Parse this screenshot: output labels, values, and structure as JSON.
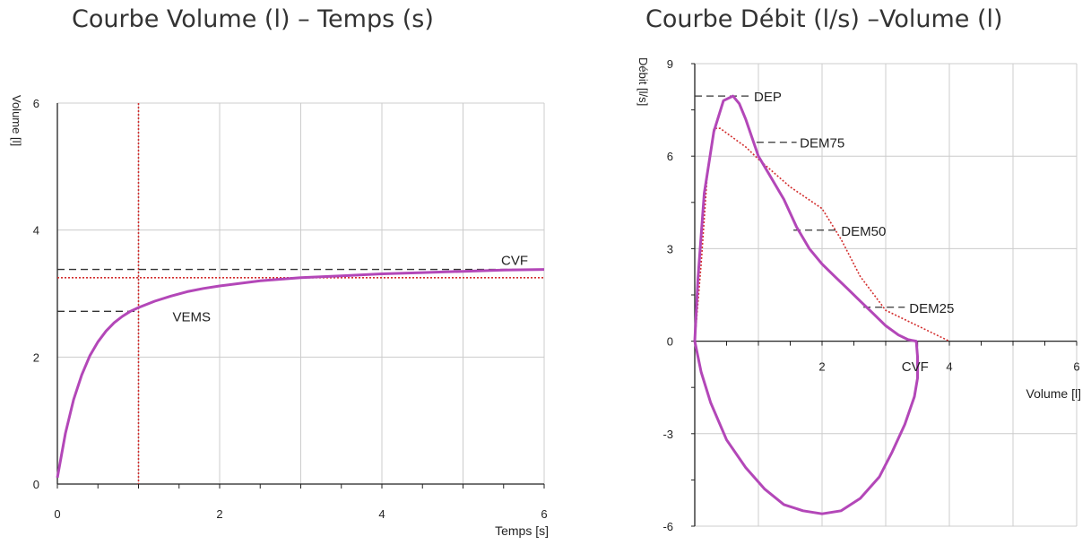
{
  "chart_data": [
    {
      "type": "line",
      "title": "Courbe Volume (l) – Temps (s)",
      "xlabel": "Temps [s]",
      "ylabel": "Volume [l]",
      "xlim": [
        0,
        6
      ],
      "ylim": [
        0,
        6
      ],
      "x_ticks": [
        0,
        2,
        4,
        6
      ],
      "y_ticks": [
        0,
        2,
        4,
        6
      ],
      "grid": true,
      "series": [
        {
          "x": [
            0,
            0.1,
            0.2,
            0.3,
            0.4,
            0.5,
            0.6,
            0.7,
            0.8,
            0.9,
            1.0,
            1.2,
            1.4,
            1.6,
            1.8,
            2.0,
            2.5,
            3.0,
            3.5,
            4.0,
            4.5,
            5.0,
            5.5,
            6.0
          ],
          "y": [
            0.1,
            0.8,
            1.33,
            1.72,
            2.02,
            2.24,
            2.41,
            2.54,
            2.64,
            2.72,
            2.78,
            2.88,
            2.96,
            3.03,
            3.08,
            3.12,
            3.2,
            3.25,
            3.28,
            3.31,
            3.33,
            3.35,
            3.37,
            3.38
          ]
        }
      ],
      "reference_lines": [
        {
          "axis": "x",
          "value": 1.0
        },
        {
          "axis": "y",
          "value": 3.25
        }
      ],
      "annotations": [
        {
          "label": "VEMS",
          "x": 1.0,
          "y": 2.72
        },
        {
          "label": "CVF",
          "x": 6.0,
          "y": 3.38
        }
      ]
    },
    {
      "type": "line",
      "title": "Courbe Débit (l/s) –Volume (l)",
      "xlabel": "Volume [l]",
      "ylabel": "Débit [l/s]",
      "xlim": [
        0,
        6
      ],
      "ylim": [
        -6,
        9
      ],
      "x_ticks": [
        2,
        4,
        6
      ],
      "y_ticks": [
        -6,
        -3,
        0,
        3,
        6,
        9
      ],
      "grid": true,
      "series": [
        {
          "x": [
            0,
            0.05,
            0.15,
            0.3,
            0.45,
            0.6,
            0.7,
            0.8,
            0.9,
            1.0,
            1.2,
            1.4,
            1.6,
            1.8,
            2.0,
            2.2,
            2.4,
            2.6,
            2.8,
            3.0,
            3.2,
            3.35,
            3.48,
            3.5,
            3.5,
            3.45,
            3.3,
            3.1,
            2.9,
            2.6,
            2.3,
            2.0,
            1.7,
            1.4,
            1.1,
            0.8,
            0.5,
            0.25,
            0.1,
            0
          ],
          "y": [
            0,
            2.0,
            4.8,
            6.8,
            7.8,
            7.95,
            7.7,
            7.2,
            6.6,
            6.0,
            5.3,
            4.6,
            3.7,
            3.0,
            2.5,
            2.1,
            1.7,
            1.3,
            0.9,
            0.5,
            0.2,
            0.05,
            0.0,
            -0.5,
            -1.2,
            -1.8,
            -2.7,
            -3.6,
            -4.4,
            -5.1,
            -5.5,
            -5.6,
            -5.5,
            -5.3,
            -4.8,
            -4.1,
            -3.2,
            -2.0,
            -1.0,
            0
          ]
        }
      ],
      "predicted_series": {
        "x": [
          0,
          0.1,
          0.2,
          0.3,
          0.4,
          0.6,
          0.8,
          1.0,
          1.5,
          2.0,
          2.3,
          2.6,
          3.0,
          3.5,
          4.0
        ],
        "y": [
          0,
          2.5,
          5.5,
          6.9,
          6.9,
          6.6,
          6.3,
          5.9,
          5.0,
          4.3,
          3.3,
          2.1,
          1.0,
          0.5,
          0.0
        ]
      },
      "annotations": [
        {
          "label": "DEP",
          "x": 0.6,
          "y": 7.95
        },
        {
          "label": "DEM75",
          "x": 0.97,
          "y": 6.45
        },
        {
          "label": "DEM50",
          "x": 1.55,
          "y": 3.6
        },
        {
          "label": "DEM25",
          "x": 2.65,
          "y": 1.1
        },
        {
          "label": "CVF",
          "x": 3.5,
          "y": 0
        }
      ]
    }
  ],
  "colors": {
    "measured_curve": "#b347b8",
    "reference": "#d32f2f",
    "guide": "#333333",
    "grid": "#cccccc",
    "axis": "#222222"
  }
}
